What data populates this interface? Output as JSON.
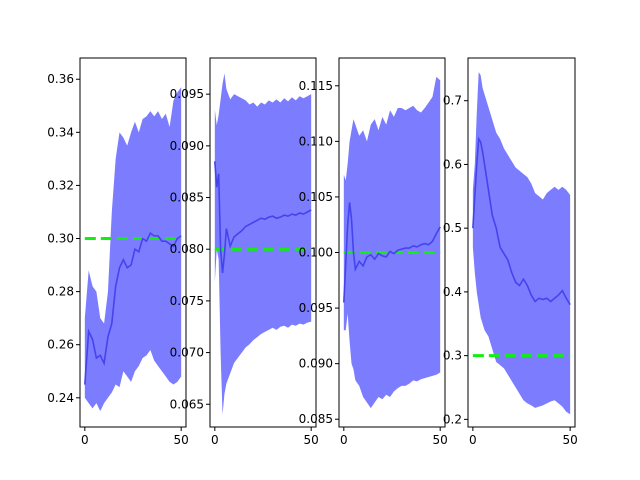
{
  "chart_data": [
    {
      "type": "line",
      "title": "",
      "xlabel": "",
      "ylabel": "",
      "xlim": [
        -2.5,
        52.5
      ],
      "ylim": [
        0.229,
        0.368
      ],
      "xticks": [
        0,
        50
      ],
      "yticks": [
        0.24,
        0.26,
        0.28,
        0.3,
        0.32,
        0.34,
        0.36
      ],
      "ytick_labels": [
        "0.24",
        "0.26",
        "0.28",
        "0.30",
        "0.32",
        "0.34",
        "0.36"
      ],
      "reference": 0.3,
      "x": [
        0,
        2,
        4,
        6,
        8,
        10,
        12,
        14,
        16,
        18,
        20,
        22,
        24,
        26,
        28,
        30,
        32,
        34,
        36,
        38,
        40,
        42,
        44,
        46,
        48,
        50
      ],
      "mean": [
        0.245,
        0.265,
        0.262,
        0.255,
        0.256,
        0.253,
        0.263,
        0.268,
        0.282,
        0.289,
        0.292,
        0.289,
        0.29,
        0.296,
        0.295,
        0.3,
        0.299,
        0.302,
        0.301,
        0.301,
        0.299,
        0.299,
        0.298,
        0.297,
        0.3,
        0.301
      ],
      "upper": [
        0.27,
        0.288,
        0.282,
        0.28,
        0.27,
        0.268,
        0.28,
        0.31,
        0.33,
        0.34,
        0.338,
        0.335,
        0.34,
        0.344,
        0.34,
        0.345,
        0.346,
        0.348,
        0.346,
        0.348,
        0.345,
        0.347,
        0.342,
        0.352,
        0.355,
        0.357
      ],
      "lower": [
        0.24,
        0.238,
        0.236,
        0.238,
        0.235,
        0.238,
        0.24,
        0.242,
        0.245,
        0.244,
        0.25,
        0.248,
        0.246,
        0.25,
        0.252,
        0.255,
        0.256,
        0.258,
        0.254,
        0.252,
        0.25,
        0.248,
        0.246,
        0.245,
        0.246,
        0.248
      ]
    },
    {
      "type": "line",
      "title": "",
      "xlabel": "",
      "ylabel": "",
      "xlim": [
        -2.5,
        52.5
      ],
      "ylim": [
        0.0628,
        0.0985
      ],
      "xticks": [
        0,
        50
      ],
      "yticks": [
        0.065,
        0.07,
        0.075,
        0.08,
        0.085,
        0.09,
        0.095
      ],
      "ytick_labels": [
        "0.065",
        "0.070",
        "0.075",
        "0.080",
        "0.085",
        "0.090",
        "0.095"
      ],
      "reference": 0.08,
      "x": [
        0,
        1,
        2,
        3,
        4,
        5,
        6,
        8,
        10,
        12,
        14,
        16,
        18,
        20,
        22,
        24,
        26,
        28,
        30,
        32,
        34,
        36,
        38,
        40,
        42,
        44,
        46,
        48,
        50
      ],
      "mean": [
        0.0885,
        0.086,
        0.0873,
        0.08,
        0.0777,
        0.0795,
        0.082,
        0.0803,
        0.0812,
        0.0815,
        0.0818,
        0.0822,
        0.0824,
        0.0826,
        0.0828,
        0.083,
        0.0829,
        0.0831,
        0.0832,
        0.083,
        0.0831,
        0.0833,
        0.0832,
        0.0834,
        0.0833,
        0.0835,
        0.0834,
        0.0836,
        0.0838
      ],
      "upper": [
        0.0935,
        0.092,
        0.093,
        0.0945,
        0.096,
        0.097,
        0.0955,
        0.0945,
        0.095,
        0.0948,
        0.0946,
        0.0944,
        0.094,
        0.0942,
        0.0938,
        0.0942,
        0.094,
        0.0944,
        0.0942,
        0.0945,
        0.0942,
        0.0946,
        0.0943,
        0.0947,
        0.0944,
        0.0948,
        0.0946,
        0.0948,
        0.095
      ],
      "lower": [
        0.0768,
        0.08,
        0.079,
        0.07,
        0.064,
        0.066,
        0.067,
        0.068,
        0.069,
        0.0695,
        0.07,
        0.0705,
        0.0708,
        0.0712,
        0.0715,
        0.0718,
        0.072,
        0.0722,
        0.0724,
        0.0722,
        0.0725,
        0.0726,
        0.0724,
        0.0727,
        0.0726,
        0.0728,
        0.0727,
        0.0729,
        0.073
      ]
    },
    {
      "type": "line",
      "title": "",
      "xlabel": "",
      "ylabel": "",
      "xlim": [
        -2.5,
        52.5
      ],
      "ylim": [
        0.0843,
        0.1175
      ],
      "xticks": [
        0,
        50
      ],
      "yticks": [
        0.085,
        0.09,
        0.095,
        0.1,
        0.105,
        0.11,
        0.115
      ],
      "ytick_labels": [
        "0.085",
        "0.090",
        "0.095",
        "0.100",
        "0.105",
        "0.110",
        "0.115"
      ],
      "reference": 0.1,
      "x": [
        0,
        1,
        2,
        3,
        4,
        5,
        6,
        8,
        10,
        12,
        14,
        16,
        18,
        20,
        22,
        24,
        26,
        28,
        30,
        32,
        34,
        36,
        38,
        40,
        42,
        44,
        46,
        48,
        50
      ],
      "mean": [
        0.0955,
        0.099,
        0.1025,
        0.1045,
        0.103,
        0.1,
        0.0985,
        0.0992,
        0.0988,
        0.0996,
        0.0998,
        0.0994,
        0.0999,
        0.0997,
        0.0996,
        0.1001,
        0.0999,
        0.1002,
        0.1003,
        0.1004,
        0.1004,
        0.1006,
        0.1005,
        0.1007,
        0.1008,
        0.1007,
        0.101,
        0.1017,
        0.1023
      ],
      "upper": [
        0.107,
        0.1065,
        0.108,
        0.11,
        0.111,
        0.112,
        0.1115,
        0.1105,
        0.111,
        0.11,
        0.1115,
        0.112,
        0.111,
        0.1122,
        0.1115,
        0.1128,
        0.1122,
        0.113,
        0.113,
        0.1128,
        0.113,
        0.1132,
        0.1128,
        0.1126,
        0.113,
        0.1135,
        0.114,
        0.1158,
        0.1155
      ],
      "lower": [
        0.093,
        0.093,
        0.0945,
        0.092,
        0.09,
        0.0895,
        0.0885,
        0.088,
        0.087,
        0.0865,
        0.086,
        0.0865,
        0.087,
        0.0868,
        0.0872,
        0.087,
        0.0875,
        0.0878,
        0.088,
        0.088,
        0.0882,
        0.0885,
        0.0884,
        0.0886,
        0.0887,
        0.0888,
        0.0889,
        0.089,
        0.0892
      ]
    },
    {
      "type": "line",
      "title": "",
      "xlabel": "",
      "ylabel": "",
      "xlim": [
        -2.5,
        52.5
      ],
      "ylim": [
        0.188,
        0.767
      ],
      "xticks": [
        0,
        50
      ],
      "yticks": [
        0.2,
        0.3,
        0.4,
        0.5,
        0.6,
        0.7
      ],
      "ytick_labels": [
        "0.2",
        "0.3",
        "0.4",
        "0.5",
        "0.6",
        "0.7"
      ],
      "reference": 0.3,
      "x": [
        0,
        1,
        2,
        3,
        4,
        5,
        6,
        8,
        10,
        12,
        14,
        16,
        18,
        20,
        22,
        24,
        26,
        28,
        30,
        32,
        34,
        36,
        38,
        40,
        42,
        44,
        46,
        48,
        50
      ],
      "mean": [
        0.5,
        0.55,
        0.6,
        0.64,
        0.635,
        0.62,
        0.6,
        0.56,
        0.52,
        0.5,
        0.47,
        0.46,
        0.45,
        0.43,
        0.415,
        0.41,
        0.42,
        0.41,
        0.395,
        0.385,
        0.39,
        0.388,
        0.39,
        0.385,
        0.39,
        0.395,
        0.402,
        0.39,
        0.38
      ],
      "upper": [
        0.56,
        0.6,
        0.68,
        0.745,
        0.74,
        0.72,
        0.71,
        0.69,
        0.67,
        0.65,
        0.64,
        0.625,
        0.615,
        0.605,
        0.595,
        0.59,
        0.585,
        0.58,
        0.57,
        0.555,
        0.55,
        0.545,
        0.555,
        0.56,
        0.565,
        0.56,
        0.565,
        0.56,
        0.552
      ],
      "lower": [
        0.47,
        0.43,
        0.4,
        0.38,
        0.36,
        0.35,
        0.34,
        0.33,
        0.31,
        0.29,
        0.285,
        0.28,
        0.27,
        0.26,
        0.25,
        0.24,
        0.23,
        0.225,
        0.222,
        0.218,
        0.22,
        0.222,
        0.225,
        0.228,
        0.23,
        0.225,
        0.22,
        0.212,
        0.208
      ]
    }
  ],
  "colors": {
    "band": "#7c7cff",
    "mean_line": "#4444ee",
    "reference_line": "#11ee11",
    "axes": "#000000"
  }
}
